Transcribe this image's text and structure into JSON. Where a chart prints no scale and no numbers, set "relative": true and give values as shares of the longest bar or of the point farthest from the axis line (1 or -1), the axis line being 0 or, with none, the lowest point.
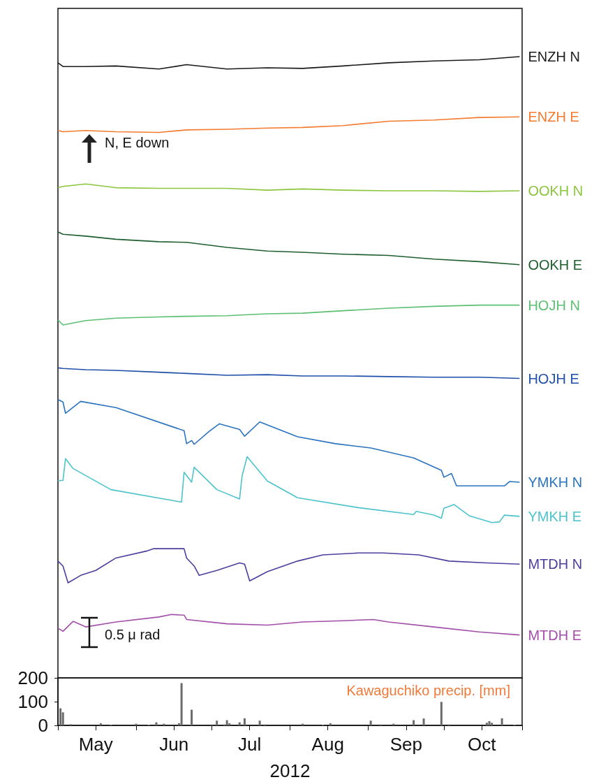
{
  "chart_data": [
    {
      "type": "line",
      "relative": true,
      "marker": "none",
      "xlim": [
        "2012-05-01",
        "2012-11-01"
      ],
      "x": [
        "2012-05-01",
        "2012-05-03",
        "2012-05-12",
        "2012-05-24",
        "2012-06-10",
        "2012-06-21",
        "2012-07-07",
        "2012-07-23",
        "2012-08-06",
        "2012-08-22",
        "2012-09-09",
        "2012-09-27",
        "2012-10-15",
        "2012-10-31"
      ],
      "annotations": [
        "N, E down",
        "0.5 μ rad"
      ],
      "series": [
        {
          "name": "ENZH N",
          "color": "#1a1a1a",
          "values": [
            0.99,
            0.984,
            0.984,
            0.985,
            0.98,
            0.987,
            0.98,
            0.982,
            0.981,
            0.985,
            0.99,
            0.993,
            0.995,
            1
          ]
        },
        {
          "name": "ENZH E",
          "color": "#f47b30",
          "values": [
            0.881,
            0.879,
            0.881,
            0.879,
            0.878,
            0.882,
            0.883,
            0.885,
            0.886,
            0.889,
            0.896,
            0.898,
            0.902,
            0.903
          ]
        },
        {
          "name": "OOKH N",
          "color": "#8cc63f",
          "values": [
            0.789,
            0.791,
            0.795,
            0.789,
            0.788,
            0.788,
            0.788,
            0.785,
            0.787,
            0.785,
            0.784,
            0.784,
            0.783,
            0.784
          ]
        },
        {
          "name": "OOKH E",
          "color": "#1f5e2e",
          "values": [
            0.718,
            0.714,
            0.711,
            0.706,
            0.702,
            0.701,
            0.693,
            0.687,
            0.685,
            0.682,
            0.68,
            0.674,
            0.67,
            0.665
          ]
        },
        {
          "name": "HOJH N",
          "color": "#5cbf73",
          "values": [
            0.576,
            0.568,
            0.575,
            0.579,
            0.581,
            0.582,
            0.583,
            0.586,
            0.587,
            0.591,
            0.595,
            0.598,
            0.6,
            0.6
          ]
        },
        {
          "name": "HOJH E",
          "color": "#1f4fa8",
          "values": [
            0.499,
            0.498,
            0.496,
            0.495,
            0.492,
            0.49,
            0.487,
            0.488,
            0.486,
            0.486,
            0.485,
            0.484,
            0.484,
            0.482
          ]
        },
        {
          "name": "YMKH N",
          "color": "#2a73c0",
          "x": [
            "2012-05-01",
            "2012-05-03",
            "2012-05-04",
            "2012-05-10",
            "2012-05-24",
            "2012-06-17",
            "2012-06-20",
            "2012-06-21",
            "2012-06-23",
            "2012-06-24",
            "2012-06-30",
            "2012-07-04",
            "2012-07-12",
            "2012-07-14",
            "2012-07-20",
            "2012-08-04",
            "2012-08-19",
            "2012-09-02",
            "2012-09-19",
            "2012-09-30",
            "2012-10-01",
            "2012-10-04",
            "2012-10-06",
            "2012-10-25",
            "2012-10-27",
            "2012-10-31"
          ],
          "values": [
            0.448,
            0.444,
            0.426,
            0.445,
            0.435,
            0.402,
            0.398,
            0.377,
            0.382,
            0.376,
            0.397,
            0.409,
            0.4,
            0.389,
            0.412,
            0.388,
            0.377,
            0.37,
            0.354,
            0.334,
            0.323,
            0.329,
            0.309,
            0.309,
            0.316,
            0.315
          ]
        },
        {
          "name": "YMKH E",
          "color": "#4cc3cc",
          "x": [
            "2012-05-01",
            "2012-05-03",
            "2012-05-04",
            "2012-05-07",
            "2012-05-22",
            "2012-06-19",
            "2012-06-20",
            "2012-06-23",
            "2012-06-24",
            "2012-07-03",
            "2012-07-12",
            "2012-07-13",
            "2012-07-15",
            "2012-07-23",
            "2012-08-04",
            "2012-08-28",
            "2012-09-19",
            "2012-09-20",
            "2012-09-27",
            "2012-09-30",
            "2012-10-01",
            "2012-10-05",
            "2012-10-11",
            "2012-10-20",
            "2012-10-23",
            "2012-10-25",
            "2012-10-31"
          ],
          "values": [
            0.317,
            0.318,
            0.353,
            0.337,
            0.303,
            0.283,
            0.331,
            0.315,
            0.339,
            0.303,
            0.288,
            0.325,
            0.356,
            0.317,
            0.29,
            0.274,
            0.263,
            0.268,
            0.262,
            0.257,
            0.273,
            0.279,
            0.261,
            0.25,
            0.251,
            0.262,
            0.26
          ]
        },
        {
          "name": "MTDH N",
          "color": "#4b3f9e",
          "x": [
            "2012-05-01",
            "2012-05-03",
            "2012-05-05",
            "2012-05-10",
            "2012-05-16",
            "2012-05-24",
            "2012-06-05",
            "2012-06-08",
            "2012-06-20",
            "2012-06-21",
            "2012-06-24",
            "2012-06-26",
            "2012-07-03",
            "2012-07-12",
            "2012-07-14",
            "2012-07-16",
            "2012-07-23",
            "2012-08-04",
            "2012-08-14",
            "2012-08-28",
            "2012-09-07",
            "2012-09-21",
            "2012-10-03",
            "2012-10-18",
            "2012-10-31"
          ],
          "values": [
            0.188,
            0.18,
            0.153,
            0.165,
            0.173,
            0.193,
            0.204,
            0.208,
            0.208,
            0.193,
            0.18,
            0.165,
            0.173,
            0.185,
            0.183,
            0.156,
            0.171,
            0.188,
            0.198,
            0.201,
            0.201,
            0.198,
            0.188,
            0.185,
            0.183
          ]
        },
        {
          "name": "MTDH E",
          "color": "#a24ea8",
          "x": [
            "2012-05-01",
            "2012-05-03",
            "2012-05-07",
            "2012-05-12",
            "2012-05-24",
            "2012-06-10",
            "2012-06-15",
            "2012-06-20",
            "2012-06-21",
            "2012-07-07",
            "2012-07-23",
            "2012-08-06",
            "2012-08-22",
            "2012-09-03",
            "2012-09-09",
            "2012-09-27",
            "2012-10-15",
            "2012-10-31"
          ],
          "values": [
            0.08,
            0.075,
            0.091,
            0.082,
            0.09,
            0.098,
            0.102,
            0.101,
            0.094,
            0.087,
            0.085,
            0.09,
            0.092,
            0.094,
            0.09,
            0.082,
            0.074,
            0.069
          ]
        }
      ]
    },
    {
      "type": "bar",
      "title": "Kawaguchiko precip. [mm]",
      "xlabel": "2012",
      "color": "#6b6b6b",
      "xlim": [
        "2012-05-01",
        "2012-11-01"
      ],
      "xticks": [
        {
          "value": "2012-05-01",
          "label": null
        },
        {
          "value": "2012-05-16",
          "label": "May"
        },
        {
          "value": "2012-06-01",
          "label": null
        },
        {
          "value": "2012-06-16",
          "label": "Jun"
        },
        {
          "value": "2012-07-01",
          "label": null
        },
        {
          "value": "2012-07-16",
          "label": "Jul"
        },
        {
          "value": "2012-08-01",
          "label": null
        },
        {
          "value": "2012-08-16",
          "label": "Aug"
        },
        {
          "value": "2012-09-01",
          "label": null
        },
        {
          "value": "2012-09-16",
          "label": "Sep"
        },
        {
          "value": "2012-10-01",
          "label": null
        },
        {
          "value": "2012-10-16",
          "label": "Oct"
        },
        {
          "value": "2012-11-01",
          "label": null
        }
      ],
      "ylim": [
        0,
        200
      ],
      "yticks": [
        0,
        100,
        200
      ],
      "x": [
        "2012-05-02",
        "2012-05-03",
        "2012-05-06",
        "2012-05-18",
        "2012-05-22",
        "2012-06-01",
        "2012-06-06",
        "2012-06-09",
        "2012-06-12",
        "2012-06-18",
        "2012-06-19",
        "2012-06-23",
        "2012-07-01",
        "2012-07-03",
        "2012-07-06",
        "2012-07-07",
        "2012-07-08",
        "2012-07-12",
        "2012-07-14",
        "2012-07-20",
        "2012-07-22",
        "2012-08-06",
        "2012-08-14",
        "2012-08-17",
        "2012-09-02",
        "2012-09-06",
        "2012-09-11",
        "2012-09-19",
        "2012-09-23",
        "2012-09-30",
        "2012-10-03",
        "2012-10-18",
        "2012-10-19",
        "2012-10-20",
        "2012-10-24",
        "2012-10-29"
      ],
      "values": [
        72,
        55,
        5,
        9,
        3,
        7,
        3,
        13,
        7,
        9,
        178,
        66,
        4,
        20,
        4,
        22,
        9,
        13,
        30,
        20,
        4,
        7,
        3,
        9,
        20,
        4,
        7,
        22,
        29,
        99,
        4,
        11,
        18,
        11,
        30,
        3
      ]
    }
  ]
}
